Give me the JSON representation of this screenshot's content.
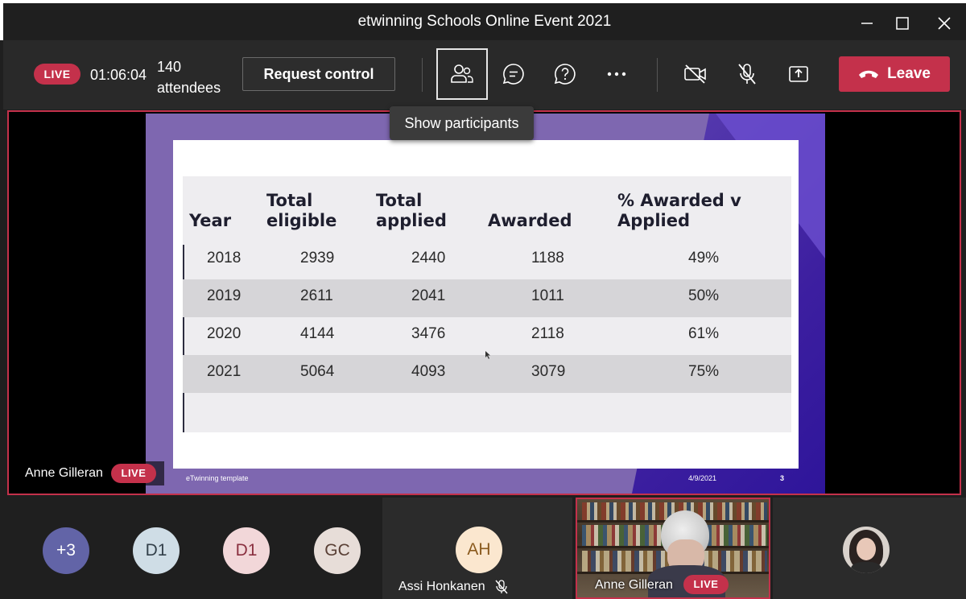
{
  "window": {
    "title": "etwinning Schools Online Event 2021"
  },
  "toolbar": {
    "live_label": "LIVE",
    "elapsed_time": "01:06:04",
    "attendees_count": "140",
    "attendees_label": "attendees",
    "request_control_label": "Request control",
    "icons": [
      "participants-icon",
      "chat-icon",
      "qna-icon",
      "more-icon",
      "camera-off-icon",
      "mic-off-icon",
      "share-icon"
    ],
    "leave_label": "Leave"
  },
  "tooltip": {
    "text": "Show participants"
  },
  "slide": {
    "headers": {
      "year": "Year",
      "eligible_line1": "Total",
      "eligible_line2": "eligible",
      "applied_line1": "Total",
      "applied_line2": "applied",
      "awarded": "Awarded",
      "pct_line1": "% Awarded v",
      "pct_line2": "Applied"
    },
    "rows": [
      {
        "year": "2018",
        "eligible": "2939",
        "applied": "2440",
        "awarded": "1188",
        "pct": "49%"
      },
      {
        "year": "2019",
        "eligible": "2611",
        "applied": "2041",
        "awarded": "1011",
        "pct": "50%"
      },
      {
        "year": "2020",
        "eligible": "4144",
        "applied": "3476",
        "awarded": "2118",
        "pct": "61%"
      },
      {
        "year": "2021",
        "eligible": "5064",
        "applied": "4093",
        "awarded": "3079",
        "pct": "75%"
      }
    ],
    "footer_left": "eTwinning template",
    "footer_date": "4/9/2021",
    "footer_page": "3"
  },
  "presenter": {
    "name": "Anne Gilleran",
    "live_label": "LIVE"
  },
  "participants": {
    "overflow": {
      "initials": "+3",
      "color": "#6264a7"
    },
    "avatars": [
      {
        "initials": "D1",
        "bg": "#cfdde6",
        "fg": "#33404a"
      },
      {
        "initials": "D1",
        "bg": "#f2d7d9",
        "fg": "#8a3040"
      },
      {
        "initials": "GC",
        "bg": "#e7ddd8",
        "fg": "#5a4036"
      }
    ],
    "assi": {
      "initials": "AH",
      "bg": "#fbe7cf",
      "fg": "#8a5a1e",
      "name": "Assi Honkanen"
    },
    "anne": {
      "name": "Anne Gilleran",
      "live_label": "LIVE"
    }
  },
  "colors": {
    "accent_red": "#c4314b",
    "toolbar_bg": "#292929",
    "slide_purple": "#7e67b0"
  }
}
